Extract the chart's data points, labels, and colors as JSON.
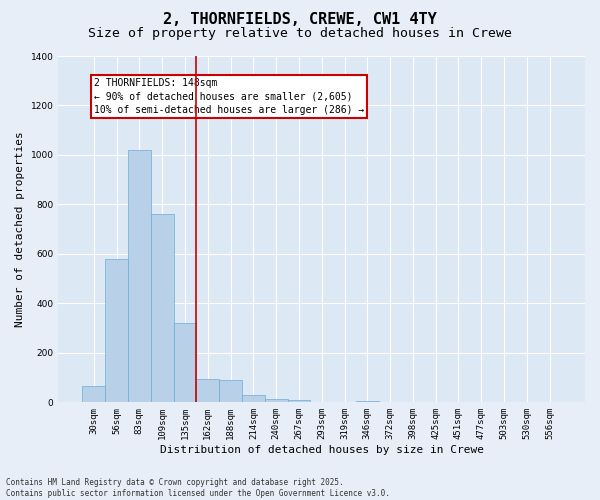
{
  "title1": "2, THORNFIELDS, CREWE, CW1 4TY",
  "title2": "Size of property relative to detached houses in Crewe",
  "xlabel": "Distribution of detached houses by size in Crewe",
  "ylabel": "Number of detached properties",
  "categories": [
    "30sqm",
    "56sqm",
    "83sqm",
    "109sqm",
    "135sqm",
    "162sqm",
    "188sqm",
    "214sqm",
    "240sqm",
    "267sqm",
    "293sqm",
    "319sqm",
    "346sqm",
    "372sqm",
    "398sqm",
    "425sqm",
    "451sqm",
    "477sqm",
    "503sqm",
    "530sqm",
    "556sqm"
  ],
  "values": [
    65,
    580,
    1020,
    760,
    320,
    95,
    90,
    30,
    15,
    8,
    0,
    0,
    5,
    0,
    0,
    0,
    0,
    0,
    0,
    0,
    0
  ],
  "bar_color": "#b8d0e8",
  "bar_edge_color": "#6baed6",
  "vline_x": 4.5,
  "vline_color": "#cc0000",
  "annotation_text": "2 THORNFIELDS: 148sqm\n← 90% of detached houses are smaller (2,605)\n10% of semi-detached houses are larger (286) →",
  "annotation_box_color": "#cc0000",
  "ylim": [
    0,
    1400
  ],
  "yticks": [
    0,
    200,
    400,
    600,
    800,
    1000,
    1200,
    1400
  ],
  "bg_color": "#dde8f5",
  "fig_bg_color": "#e8eef8",
  "grid_color": "#ffffff",
  "footer_line1": "Contains HM Land Registry data © Crown copyright and database right 2025.",
  "footer_line2": "Contains public sector information licensed under the Open Government Licence v3.0.",
  "title_fontsize": 11,
  "subtitle_fontsize": 9.5,
  "tick_fontsize": 6.5,
  "ylabel_fontsize": 8,
  "xlabel_fontsize": 8,
  "annotation_fontsize": 7,
  "footer_fontsize": 5.5
}
